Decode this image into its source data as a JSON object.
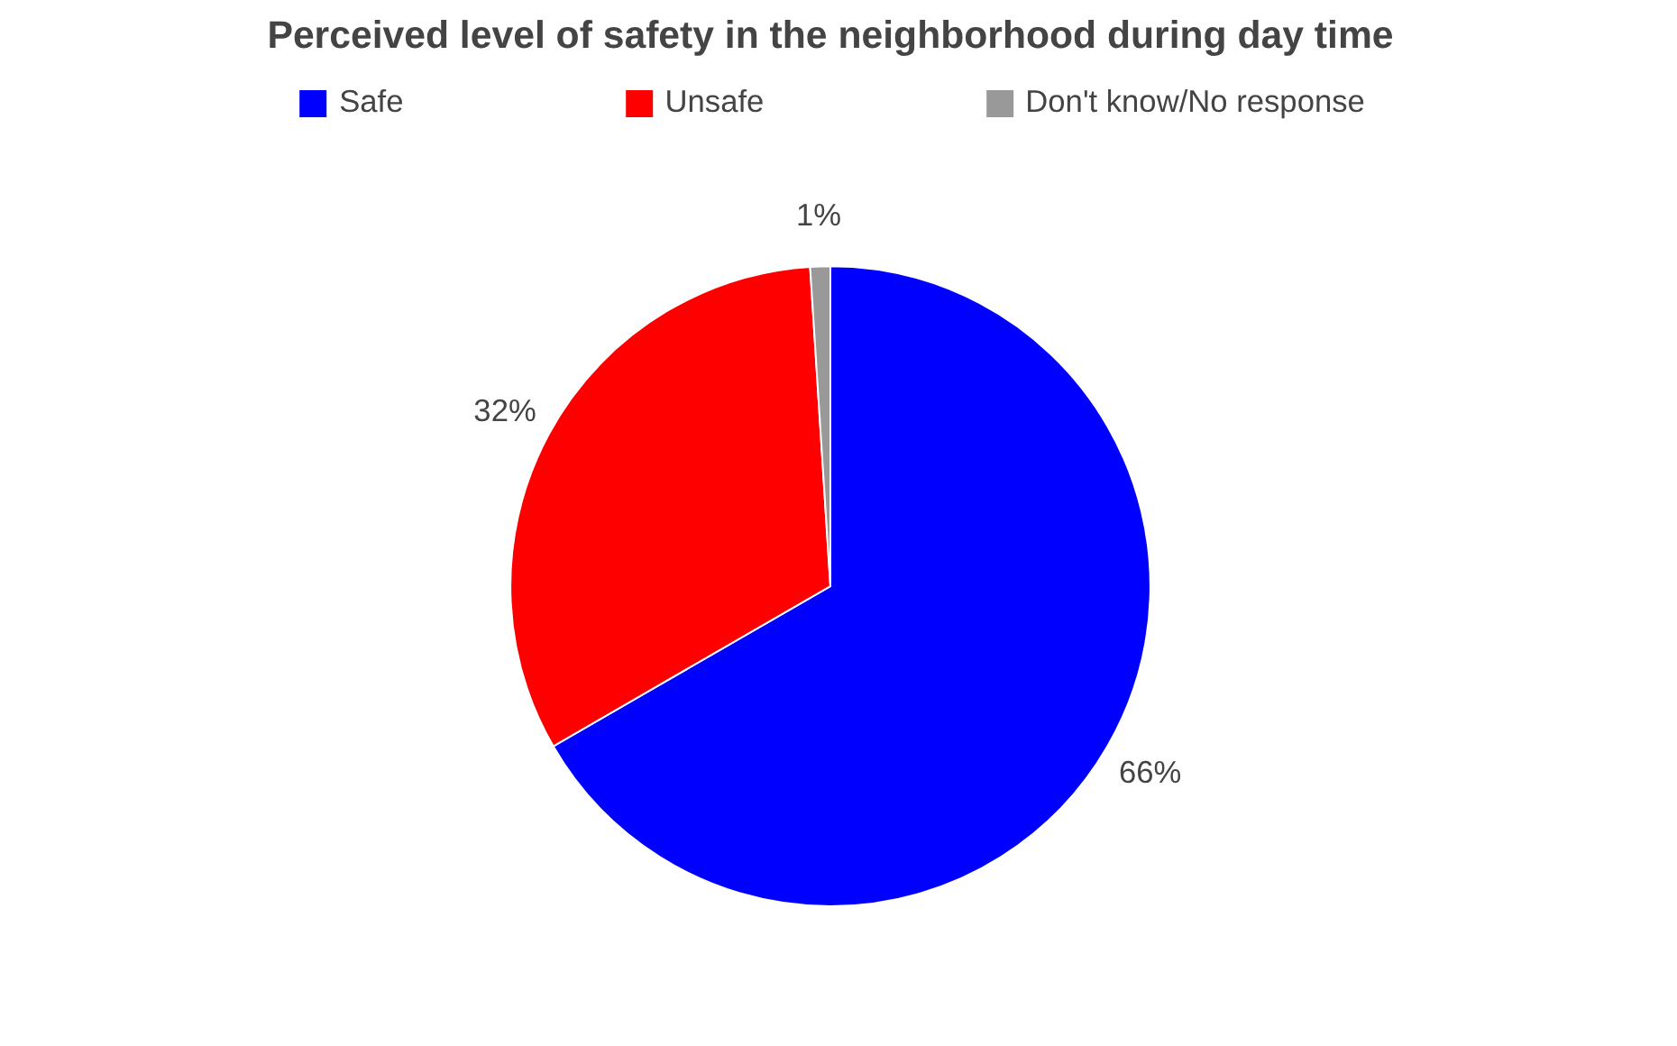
{
  "chart_data": {
    "type": "pie",
    "title": "Perceived level of safety in the neighborhood during day time",
    "categories": [
      "Safe",
      "Unsafe",
      "Don't know/No response"
    ],
    "values": [
      66,
      32,
      1
    ],
    "colors": [
      "#0000ff",
      "#ff0000",
      "#999999"
    ],
    "value_labels": [
      "66%",
      "32%",
      "1%"
    ],
    "legend": "top"
  }
}
